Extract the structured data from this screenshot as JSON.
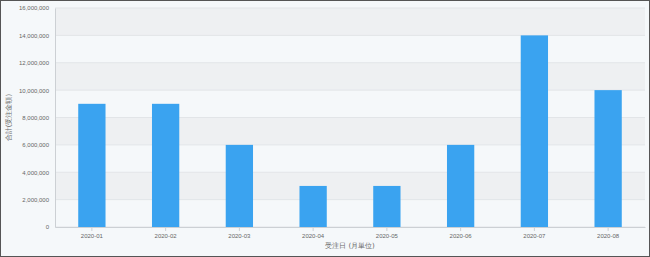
{
  "chart_data": {
    "type": "bar",
    "x_label": "受注日 (月単位)",
    "y_label": "合計(受注金額)",
    "categories": [
      "2020-01",
      "2020-02",
      "2020-03",
      "2020-04",
      "2020-05",
      "2020-06",
      "2020-07",
      "2020-08"
    ],
    "values": [
      9000000,
      9000000,
      6000000,
      3000000,
      3000000,
      6000000,
      14000000,
      10000000
    ],
    "color": "#3aa3f0",
    "ylim": [
      0,
      16000000
    ],
    "yticks": [
      0,
      {
        "value": 2000000,
        "label": "2,000,000"
      },
      {
        "value": 4000000,
        "label": "4,000,000"
      },
      {
        "value": 6000000,
        "label": "6,000,000"
      },
      {
        "value": 8000000,
        "label": "8,000,000"
      },
      {
        "value": 10000000,
        "label": "10,000,000"
      },
      {
        "value": 12000000,
        "label": "12,000,000"
      },
      {
        "value": 14000000,
        "label": "14,000,000"
      },
      {
        "value": 16000000,
        "label": "16,000,000"
      }
    ],
    "grid": true
  }
}
